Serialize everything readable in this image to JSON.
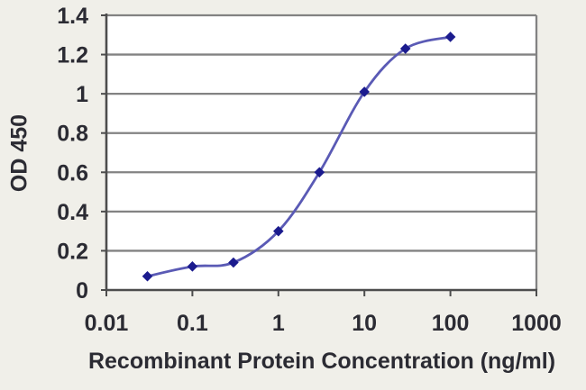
{
  "colors": {
    "background": "#f0efe9",
    "plot_background": "#ffffff",
    "gridline": "#828282",
    "axis": "#4d4d4d",
    "line": "#5a5ab5",
    "marker": "#1b1b8e",
    "text": "#2b2b33"
  },
  "chart_data": {
    "type": "line",
    "x_scale": "log10",
    "x": [
      0.03,
      0.1,
      0.3,
      1,
      3,
      10,
      30,
      100
    ],
    "y": [
      0.07,
      0.12,
      0.14,
      0.3,
      0.6,
      1.01,
      1.23,
      1.29
    ],
    "title": "",
    "xlabel": "Recombinant Protein Concentration (ng/ml)",
    "ylabel": "OD 450",
    "x_ticks": [
      0.01,
      0.1,
      1,
      10,
      100,
      1000
    ],
    "x_tick_labels": [
      "0.01",
      "0.1",
      "1",
      "10",
      "100",
      "1000"
    ],
    "y_ticks": [
      0,
      0.2,
      0.4,
      0.6,
      0.8,
      1,
      1.2,
      1.4
    ],
    "y_tick_labels": [
      "0",
      "0.2",
      "0.4",
      "0.6",
      "0.8",
      "1",
      "1.2",
      "1.4"
    ],
    "xlim": [
      0.01,
      1000
    ],
    "ylim": [
      0,
      1.4
    ],
    "grid": "horizontal",
    "legend": "none",
    "marker": "diamond",
    "line_smooth": true
  }
}
